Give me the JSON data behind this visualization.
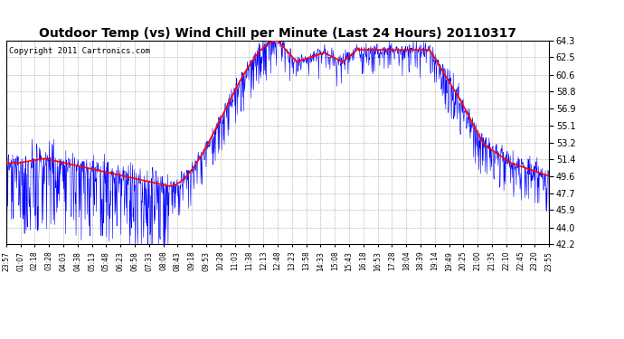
{
  "title": "Outdoor Temp (vs) Wind Chill per Minute (Last 24 Hours) 20110317",
  "copyright": "Copyright 2011 Cartronics.com",
  "yticks": [
    42.2,
    44.0,
    45.9,
    47.7,
    49.6,
    51.4,
    53.2,
    55.1,
    56.9,
    58.8,
    60.6,
    62.5,
    64.3
  ],
  "xtick_labels": [
    "23:57",
    "01:07",
    "02:18",
    "03:28",
    "04:03",
    "04:38",
    "05:13",
    "05:48",
    "06:23",
    "06:58",
    "07:33",
    "08:08",
    "08:43",
    "09:18",
    "09:53",
    "10:28",
    "11:03",
    "11:38",
    "12:13",
    "12:48",
    "13:23",
    "13:58",
    "14:33",
    "15:08",
    "15:43",
    "16:18",
    "16:53",
    "17:28",
    "18:04",
    "18:39",
    "19:14",
    "19:49",
    "20:25",
    "21:00",
    "21:35",
    "22:10",
    "22:45",
    "23:20",
    "23:55"
  ],
  "blue_line_color": "#0000ff",
  "red_line_color": "#ff0000",
  "bg_color": "#ffffff",
  "grid_color": "#aaaaaa",
  "title_fontsize": 10,
  "copyright_fontsize": 6.5,
  "ymin": 42.2,
  "ymax": 64.3,
  "n_points": 1440
}
